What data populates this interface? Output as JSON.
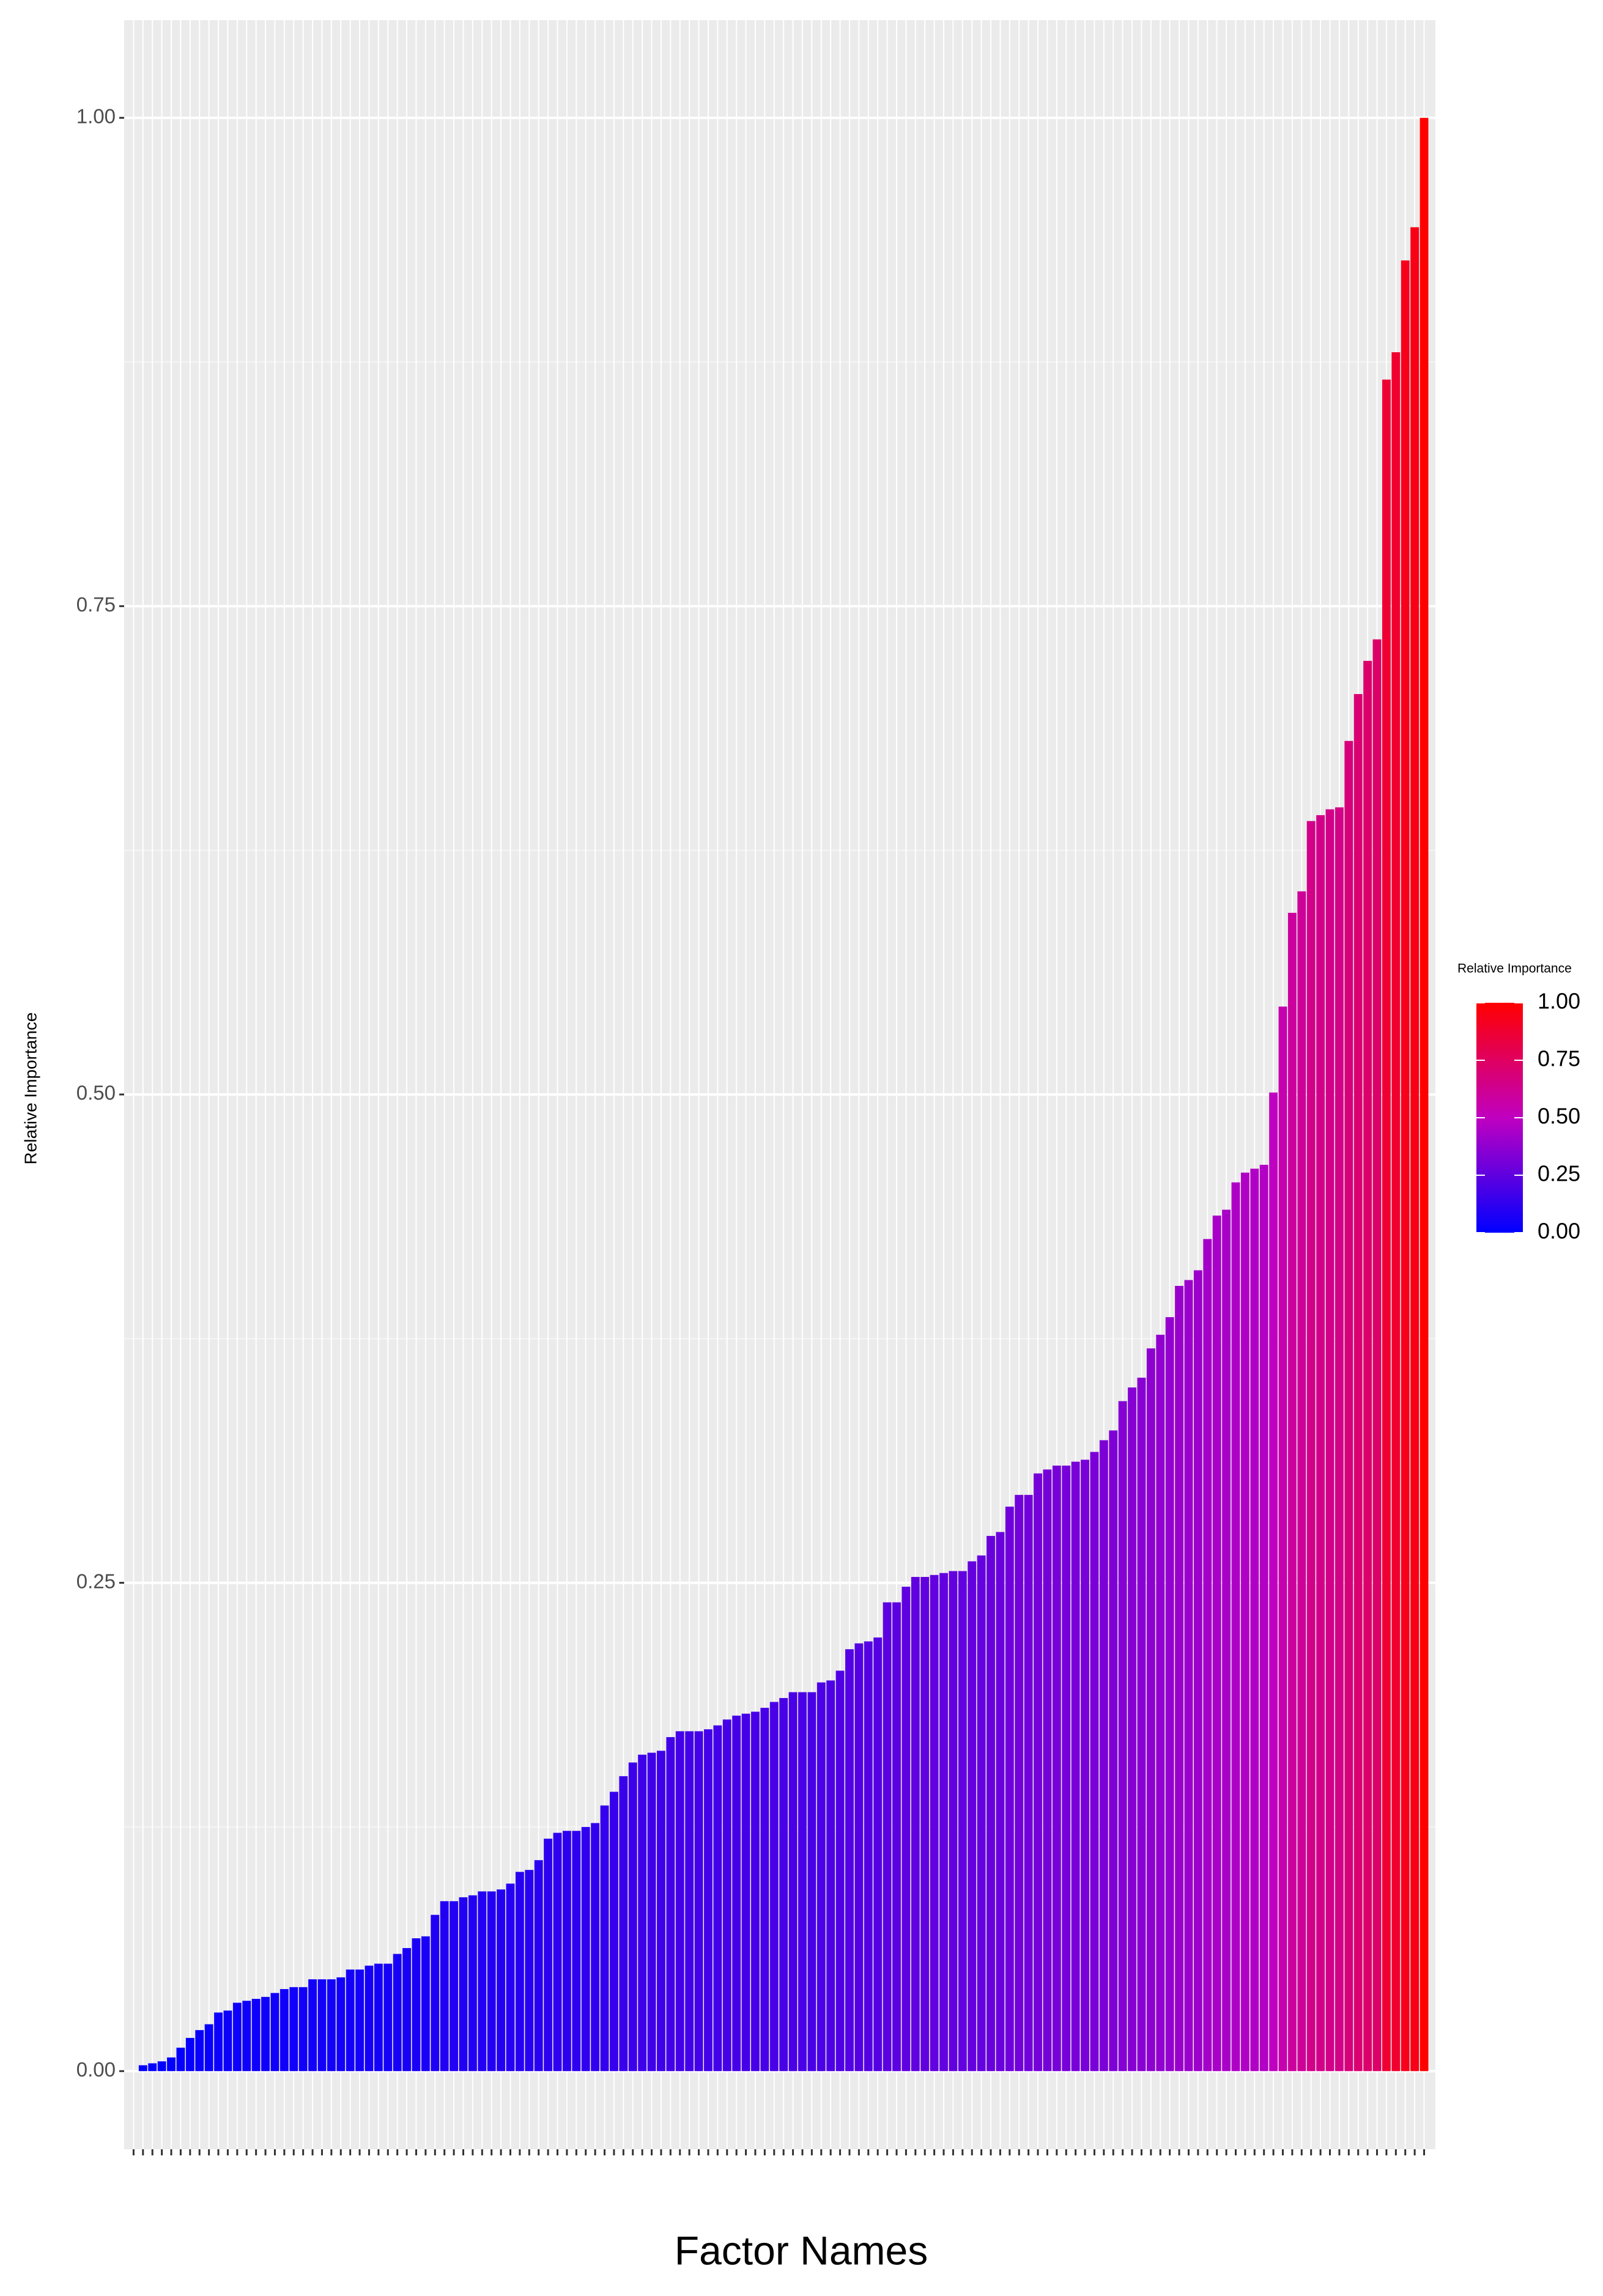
{
  "chart_data": {
    "type": "bar",
    "x_label": "Factor Names",
    "y_label": "Relative Importance",
    "legend_title": "Relative Importance",
    "categories": [
      null,
      null,
      null,
      null,
      null,
      null,
      null,
      null,
      null,
      null,
      null,
      null,
      null,
      null,
      null,
      null,
      null,
      null,
      null,
      null,
      null,
      null,
      null,
      null,
      null,
      null,
      null,
      null,
      null,
      null,
      null,
      null,
      null,
      null,
      null,
      null,
      null,
      null,
      null,
      null,
      null,
      null,
      null,
      null,
      null,
      null,
      null,
      null,
      null,
      null,
      null,
      null,
      null,
      null,
      null,
      null,
      null,
      null,
      null,
      null,
      null,
      null,
      null,
      null,
      null,
      null,
      null,
      null,
      null,
      null,
      null,
      null,
      null,
      null,
      null,
      null,
      null,
      null,
      null,
      null,
      null,
      null,
      null,
      null,
      null,
      null,
      null,
      null,
      null,
      null,
      null,
      null,
      null,
      null,
      null,
      null,
      null,
      null,
      null,
      null,
      null,
      null,
      null,
      null,
      null,
      null,
      null,
      null,
      null,
      null,
      null,
      null,
      null,
      null,
      null,
      null,
      null,
      null,
      null,
      null,
      null,
      null,
      null,
      null,
      null,
      null,
      null,
      null,
      null,
      null,
      null,
      null,
      null,
      null,
      null,
      null,
      null,
      null
    ],
    "values": [
      0,
      0.003,
      0.004,
      0.005,
      0.007,
      0.012,
      0.017,
      0.021,
      0.024,
      0.03,
      0.031,
      0.035,
      0.036,
      0.037,
      0.038,
      0.04,
      0.042,
      0.043,
      0.043,
      0.047,
      0.047,
      0.047,
      0.048,
      0.052,
      0.052,
      0.054,
      0.055,
      0.055,
      0.06,
      0.063,
      0.068,
      0.069,
      0.08,
      0.087,
      0.087,
      0.089,
      0.09,
      0.092,
      0.092,
      0.093,
      0.096,
      0.102,
      0.103,
      0.108,
      0.119,
      0.122,
      0.123,
      0.123,
      0.125,
      0.127,
      0.136,
      0.143,
      0.151,
      0.158,
      0.162,
      0.163,
      0.164,
      0.171,
      0.174,
      0.174,
      0.174,
      0.175,
      0.177,
      0.18,
      0.182,
      0.183,
      0.184,
      0.186,
      0.189,
      0.191,
      0.194,
      0.194,
      0.194,
      0.199,
      0.2,
      0.205,
      0.216,
      0.219,
      0.22,
      0.222,
      0.24,
      0.24,
      0.248,
      0.253,
      0.253,
      0.254,
      0.255,
      0.256,
      0.256,
      0.261,
      0.264,
      0.274,
      0.276,
      0.289,
      0.295,
      0.295,
      0.306,
      0.308,
      0.31,
      0.31,
      0.312,
      0.313,
      0.317,
      0.323,
      0.328,
      0.343,
      0.35,
      0.355,
      0.37,
      0.377,
      0.386,
      0.402,
      0.405,
      0.41,
      0.426,
      0.438,
      0.441,
      0.455,
      0.46,
      0.462,
      0.464,
      0.501,
      0.545,
      0.593,
      0.604,
      0.64,
      0.643,
      0.646,
      0.647,
      0.681,
      0.705,
      0.722,
      0.733,
      0.866,
      0.88,
      0.927,
      0.944,
      1.0
    ],
    "color_scale": [
      "#0000ff",
      "#c000c0",
      "#ff0000"
    ],
    "ylim": [
      -0.04,
      1.05
    ],
    "yticks": [
      {
        "value": 0,
        "label": "0.00"
      },
      {
        "value": 0.25,
        "label": "0.25"
      },
      {
        "value": 0.5,
        "label": "0.50"
      },
      {
        "value": 0.75,
        "label": "0.75"
      },
      {
        "value": 1,
        "label": "1.00"
      }
    ],
    "legend_ticks": [
      {
        "value": 0,
        "label": "0.00"
      },
      {
        "value": 0.25,
        "label": "0.25"
      },
      {
        "value": 0.5,
        "label": "0.50"
      },
      {
        "value": 0.75,
        "label": "0.75"
      },
      {
        "value": 1,
        "label": "1.00"
      }
    ],
    "grid": true,
    "minor_grid": true,
    "legend_position": "right"
  }
}
